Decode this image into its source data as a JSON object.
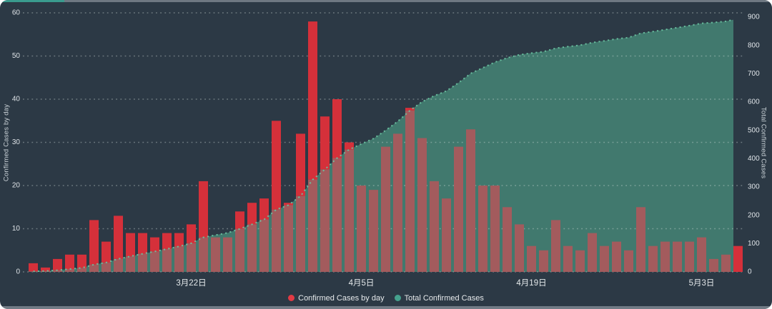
{
  "page": {
    "background": "#ffffff"
  },
  "card": {
    "background": "#2c3945",
    "scrollbar": {
      "track_color": "#6e7882",
      "thumb_color": "#3a9b8e"
    },
    "bottom_border_color": "#717b85"
  },
  "chart_data": {
    "type": "combo-bar-area",
    "title": "",
    "num_points": 59,
    "x_tick_labels": [
      {
        "index": 13,
        "label": "3月22日"
      },
      {
        "index": 27,
        "label": "4月5日"
      },
      {
        "index": 41,
        "label": "4月19日"
      },
      {
        "index": 55,
        "label": "5月3日"
      }
    ],
    "series": [
      {
        "name": "Confirmed Cases by day",
        "type": "bar",
        "axis": "left",
        "color": "#d5303a",
        "overlap_color": "#a35b5d",
        "values": [
          2,
          1,
          3,
          4,
          4,
          12,
          7,
          13,
          9,
          9,
          8,
          9,
          9,
          11,
          21,
          8,
          8,
          14,
          16,
          17,
          35,
          16,
          32,
          58,
          36,
          40,
          30,
          20,
          19,
          29,
          32,
          38,
          31,
          21,
          17,
          29,
          33,
          20,
          20,
          15,
          11,
          6,
          5,
          12,
          6,
          5,
          9,
          6,
          7,
          5,
          15,
          6,
          7,
          7,
          7,
          8,
          3,
          4,
          6
        ]
      },
      {
        "name": "Total Confirmed Cases",
        "type": "area",
        "axis": "right",
        "color": "#41796e",
        "edge_dot_color": "#6cc4a2",
        "values": [
          2,
          3,
          6,
          10,
          14,
          26,
          33,
          46,
          55,
          64,
          72,
          81,
          90,
          101,
          122,
          130,
          138,
          152,
          168,
          185,
          220,
          236,
          268,
          326,
          362,
          402,
          432,
          452,
          471,
          500,
          532,
          570,
          601,
          622,
          639,
          668,
          701,
          721,
          741,
          756,
          767,
          773,
          778,
          790,
          796,
          801,
          810,
          816,
          823,
          828,
          843,
          849,
          856,
          863,
          870,
          878,
          881,
          885,
          891
        ]
      }
    ],
    "left_axis": {
      "title": "Confirmed Cases by day",
      "min": 0,
      "max": 60,
      "step": 10,
      "ticks": [
        "0",
        "10",
        "20",
        "30",
        "40",
        "50",
        "60"
      ]
    },
    "right_axis": {
      "title": "Total Confirmed Cases",
      "min": 0,
      "max": 900,
      "step": 100,
      "ticks": [
        "0",
        "100",
        "200",
        "300",
        "400",
        "500",
        "600",
        "700",
        "800",
        "900"
      ]
    },
    "grid": {
      "on": true,
      "color": "rgba(215,227,224,0.38)"
    },
    "text_color": "#dee3e7",
    "legend_position": "bottom-center",
    "legend": [
      {
        "label": "Confirmed Cases by day",
        "color": "#e23a44"
      },
      {
        "label": "Total Confirmed Cases",
        "color": "#45a18d"
      }
    ]
  }
}
